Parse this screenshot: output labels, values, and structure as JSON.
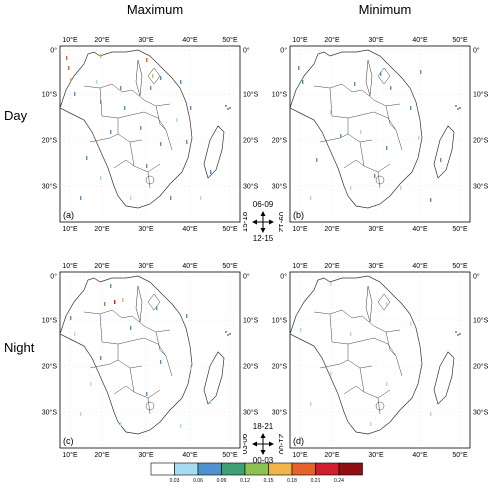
{
  "columns": [
    "Maximum",
    "Minimum"
  ],
  "rows": [
    "Day",
    "Night"
  ],
  "panels": [
    {
      "id": "a",
      "label": "(a)"
    },
    {
      "id": "b",
      "label": "(b)"
    },
    {
      "id": "c",
      "label": "(c)"
    },
    {
      "id": "d",
      "label": "(d)"
    }
  ],
  "lon_ticks": [
    "10°E",
    "20°E",
    "30°E",
    "40°E",
    "50°E"
  ],
  "lat_ticks": [
    "0°",
    "10°S",
    "20°S",
    "30°S"
  ],
  "compass_day": {
    "top": "06-09",
    "right": "09-12",
    "bottom": "12-15",
    "left": "15-18"
  },
  "compass_night": {
    "top": "18-21",
    "right": "21-00",
    "bottom": "00-03",
    "left": "03-06"
  },
  "colorbar": {
    "ticks": [
      "0.03",
      "0.06",
      "0.09",
      "0.12",
      "0.15",
      "0.18",
      "0.21",
      "0.24"
    ],
    "colors": [
      "#ffffff",
      "#a6dcf2",
      "#4f92cc",
      "#3f9f76",
      "#8cc250",
      "#f1b44a",
      "#e8622d",
      "#cf1f2e",
      "#8e1012"
    ]
  }
}
